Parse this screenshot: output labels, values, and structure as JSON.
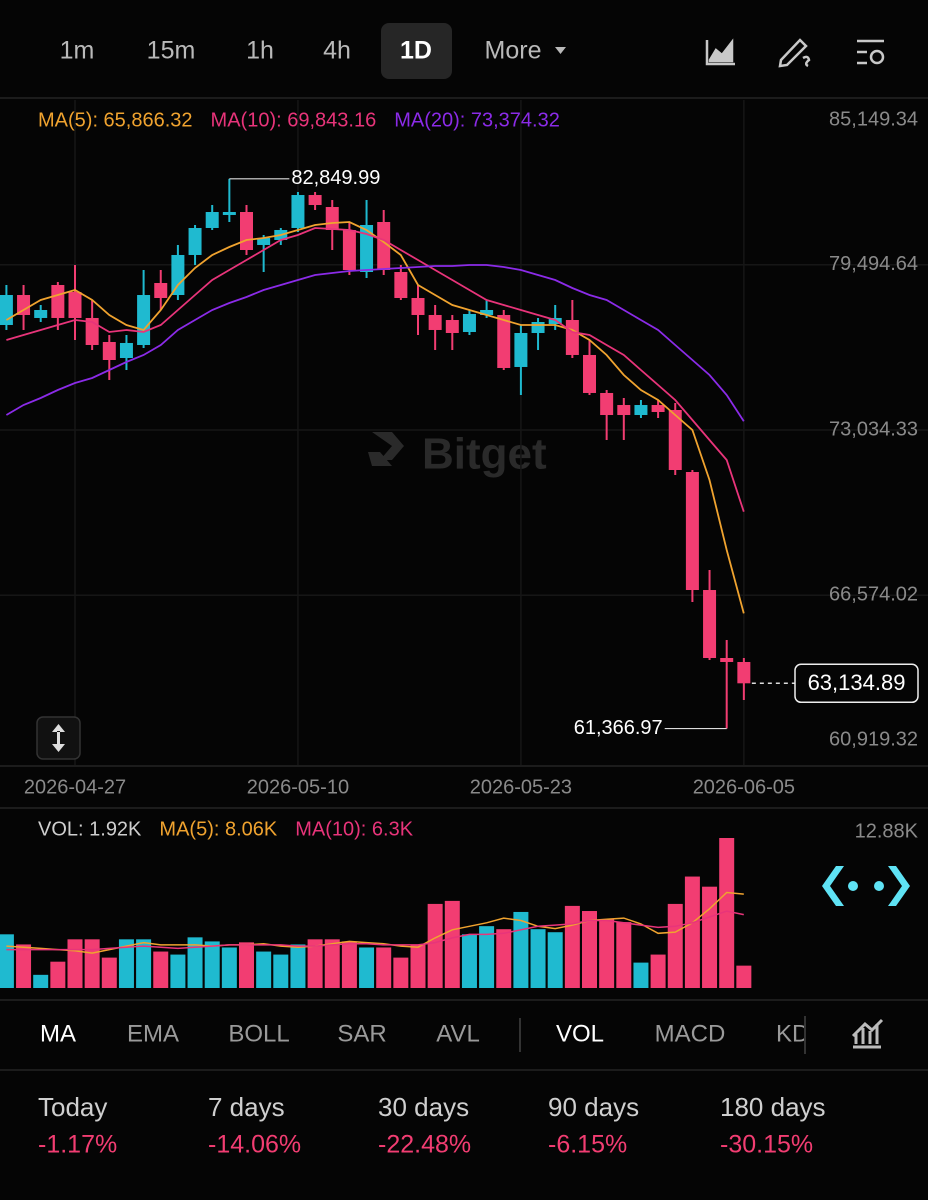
{
  "toolbar": {
    "intervals": [
      "1m",
      "15m",
      "1h",
      "4h",
      "1D",
      "More"
    ]
  },
  "watermark": "Bitget",
  "chart_data": [
    {
      "type": "candlestick",
      "categories": [
        null,
        null,
        null,
        null,
        "2026-04-27",
        null,
        null,
        null,
        null,
        null,
        null,
        null,
        null,
        null,
        null,
        null,
        null,
        "2026-05-10",
        null,
        null,
        null,
        null,
        null,
        null,
        null,
        null,
        null,
        null,
        null,
        null,
        "2026-05-23",
        null,
        null,
        null,
        null,
        null,
        null,
        null,
        null,
        null,
        null,
        null,
        null,
        "2026-06-05"
      ],
      "open": [
        77138,
        78310,
        77412,
        78701,
        78428,
        77412,
        76474,
        75848,
        76356,
        78779,
        78310,
        79874,
        80929,
        81437,
        81554,
        80265,
        80460,
        80929,
        82218,
        81749,
        80851,
        79209,
        81163,
        79209,
        78193,
        77529,
        77333,
        76864,
        77529,
        77529,
        75497,
        76825,
        77177,
        77333,
        75966,
        74481,
        74011,
        73620,
        74011,
        73816,
        71393,
        66781,
        64124,
        63968
      ],
      "high": [
        78701,
        78701,
        77920,
        78818,
        79483,
        78115,
        76747,
        76747,
        79287,
        79287,
        80265,
        81046,
        81827,
        82849.99,
        81827,
        80655,
        80929,
        82335,
        82335,
        82022,
        81163,
        82022,
        81632,
        79483,
        78701,
        77920,
        77529,
        77724,
        78115,
        77724,
        77138,
        77412,
        77920,
        78115,
        76552,
        74598,
        74285,
        74207,
        74207,
        74089,
        71471,
        67563,
        64828,
        64124
      ],
      "low": [
        76943,
        76943,
        77255,
        76943,
        76552,
        76161,
        74989,
        75379,
        76239,
        77724,
        78115,
        79483,
        80851,
        81163,
        79874,
        79209,
        80265,
        80772,
        81632,
        80069,
        79092,
        78974,
        79092,
        78115,
        76747,
        76161,
        76161,
        76747,
        77412,
        75379,
        74402,
        76161,
        76943,
        75848,
        74402,
        72644,
        72644,
        73503,
        73503,
        71276,
        66312,
        64046,
        61366.97,
        62483
      ],
      "close": [
        78310,
        77529,
        77724,
        77412,
        77412,
        76356,
        75770,
        76435,
        78310,
        78193,
        79874,
        80929,
        81554,
        81554,
        80069,
        80538,
        80851,
        82218,
        81827,
        80851,
        79287,
        81046,
        79287,
        78193,
        77529,
        76943,
        76825,
        77568,
        77724,
        75458,
        76825,
        77255,
        77412,
        75966,
        74481,
        73620,
        73620,
        74011,
        73738,
        71471,
        66781,
        64124,
        63968,
        63134.89
      ],
      "up_color": "#1fbad0",
      "down_color": "#f23d72",
      "series": [
        {
          "name": "MA(5): 65,866.32",
          "color": "#f0a32f",
          "values": [
            77333,
            77724,
            78115,
            78310,
            78505,
            78115,
            77529,
            77138,
            76943,
            77724,
            78701,
            79365,
            79874,
            80186,
            80460,
            80538,
            80655,
            80851,
            81046,
            81124,
            81163,
            80851,
            80382,
            79874,
            78701,
            78310,
            77920,
            77724,
            77529,
            77333,
            77138,
            77138,
            77138,
            76943,
            76552,
            75966,
            75184,
            74598,
            74207,
            73620,
            73034,
            71080,
            68345,
            65866.32
          ]
        },
        {
          "name": "MA(10): 69,843.16",
          "color": "#e8347a",
          "values": [
            76552,
            76747,
            76943,
            77138,
            77333,
            77255,
            76865,
            76943,
            76865,
            77138,
            77724,
            78310,
            78897,
            79287,
            79678,
            80069,
            80460,
            80655,
            80929,
            80889,
            80851,
            80694,
            80460,
            80069,
            79678,
            79287,
            78897,
            78505,
            78115,
            77920,
            77724,
            77529,
            77333,
            76865,
            76747,
            76356,
            75966,
            75379,
            74793,
            74207,
            73425,
            72644,
            71862,
            69843.16
          ]
        },
        {
          "name": "MA(20): 73,374.32",
          "color": "#8b2be8",
          "values": [
            73620,
            74011,
            74285,
            74598,
            74871,
            75066,
            75379,
            75692,
            75966,
            76356,
            76943,
            77333,
            77724,
            77997,
            78232,
            78505,
            78701,
            78897,
            79092,
            79170,
            79248,
            79287,
            79326,
            79365,
            79404,
            79443,
            79443,
            79483,
            79483,
            79404,
            79287,
            79092,
            78897,
            78584,
            78310,
            78115,
            77724,
            77333,
            76943,
            76356,
            75770,
            75184,
            74402,
            73374.32
          ]
        }
      ],
      "ylim": [
        60919.32,
        85149.34
      ],
      "yticks": [
        {
          "value": 85149.34,
          "label": "85,149.34"
        },
        {
          "value": 79494.64,
          "label": "79,494.64"
        },
        {
          "value": 73034.33,
          "label": "73,034.33"
        },
        {
          "value": 66574.02,
          "label": "66,574.02"
        },
        {
          "value": 60919.32,
          "label": "60,919.32"
        }
      ],
      "grid": true,
      "high_label": "82,849.99",
      "low_label": "61,366.97",
      "last_label": "63,134.89"
    },
    {
      "type": "bar",
      "legend": "VOL: 1.92K",
      "values": [
        4.61,
        3.74,
        1.13,
        2.26,
        4.18,
        4.18,
        2.61,
        4.18,
        4.18,
        3.13,
        2.87,
        4.35,
        4,
        3.48,
        3.92,
        3.13,
        2.87,
        3.74,
        4.18,
        4.18,
        4,
        3.48,
        3.48,
        2.61,
        3.74,
        7.22,
        7.48,
        4.61,
        5.31,
        5.05,
        6.53,
        5.05,
        4.79,
        7.05,
        6.61,
        5.92,
        5.66,
        2.18,
        2.87,
        7.22,
        9.57,
        8.7,
        12.88,
        1.92
      ],
      "series": [
        {
          "name": "MA(5): 8.06K",
          "color": "#f0a32f",
          "values": [
            3.6,
            3.5,
            3.4,
            3.3,
            3.2,
            3,
            3.3,
            3.6,
            3.9,
            3.7,
            3.7,
            3.7,
            3.6,
            3.7,
            3.7,
            3.8,
            3.6,
            3.5,
            3.6,
            3.8,
            4,
            3.9,
            3.8,
            3.6,
            3.5,
            4.3,
            5,
            5.3,
            5.6,
            6,
            5.8,
            5.3,
            5.1,
            5.4,
            5.8,
            5.9,
            6,
            5.5,
            4.7,
            4.8,
            5.6,
            6.8,
            8.2,
            8.06
          ]
        },
        {
          "name": "MA(10): 6.3K",
          "color": "#e8347a",
          "values": [
            3.3,
            3.3,
            3.3,
            3.3,
            3.3,
            3.3,
            3.4,
            3.5,
            3.6,
            3.5,
            3.4,
            3.5,
            3.6,
            3.7,
            3.7,
            3.7,
            3.7,
            3.6,
            3.6,
            3.7,
            3.8,
            3.8,
            3.7,
            3.7,
            3.7,
            3.9,
            4.3,
            4.6,
            4.6,
            4.7,
            5,
            5.3,
            5.4,
            5.5,
            5.8,
            5.8,
            5.6,
            5.4,
            5.2,
            5.3,
            5.6,
            6.1,
            6.6,
            6.3
          ]
        }
      ],
      "ylim": [
        0,
        12.88
      ],
      "yticks": [
        {
          "value": 12.88,
          "label": "12.88K"
        }
      ]
    }
  ],
  "indicator_tabs": {
    "main": [
      "MA",
      "EMA",
      "BOLL",
      "SAR",
      "AVL"
    ],
    "sub": [
      "VOL",
      "MACD",
      "KD"
    ]
  },
  "stats": [
    {
      "label": "Today",
      "value": "-1.17%"
    },
    {
      "label": "7 days",
      "value": "-14.06%"
    },
    {
      "label": "30 days",
      "value": "-22.48%"
    },
    {
      "label": "90 days",
      "value": "-6.15%"
    },
    {
      "label": "180 days",
      "value": "-30.15%"
    }
  ]
}
